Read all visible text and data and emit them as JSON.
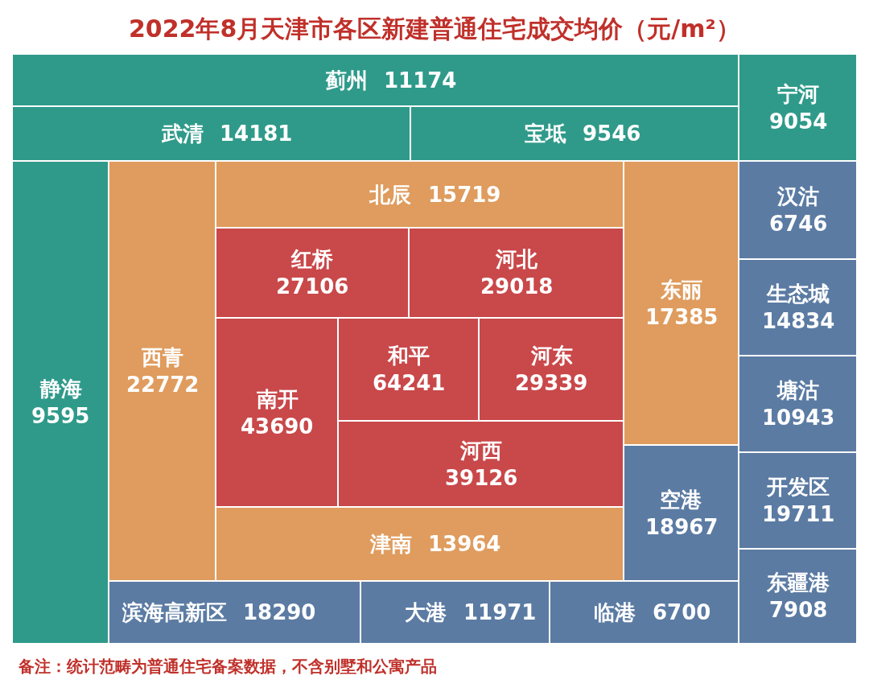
{
  "chart_data": {
    "type": "other",
    "title": "2022年8月天津市各区新建普通住宅成交均价（元/m²）",
    "categories": [
      "蓟州",
      "武清",
      "宝坻",
      "宁河",
      "静海",
      "西青",
      "北辰",
      "红桥",
      "河北",
      "南开",
      "和平",
      "河东",
      "河西",
      "津南",
      "东丽",
      "空港",
      "汉沽",
      "生态城",
      "塘沽",
      "开发区",
      "东疆港",
      "滨海高新区",
      "大港",
      "临港"
    ],
    "values": [
      11174,
      14181,
      9546,
      9054,
      9595,
      22772,
      15719,
      27106,
      29018,
      43690,
      64241,
      29339,
      39126,
      13964,
      17385,
      18967,
      6746,
      14834,
      10943,
      19711,
      7908,
      18290,
      11971,
      6700
    ],
    "colors": [
      "#2f9a8a",
      "#2f9a8a",
      "#2f9a8a",
      "#2f9a8a",
      "#2f9a8a",
      "#df9c5e",
      "#df9c5e",
      "#c9484a",
      "#c9484a",
      "#c9484a",
      "#c9484a",
      "#c9484a",
      "#c9484a",
      "#df9c5e",
      "#df9c5e",
      "#5b7ba3",
      "#5b7ba3",
      "#5b7ba3",
      "#5b7ba3",
      "#5b7ba3",
      "#5b7ba3",
      "#5b7ba3",
      "#5b7ba3",
      "#5b7ba3"
    ],
    "data_labels": true,
    "annotations": [
      "备注：统计范畴为普通住宅备案数据，不含别墅和公寓产品"
    ]
  }
}
